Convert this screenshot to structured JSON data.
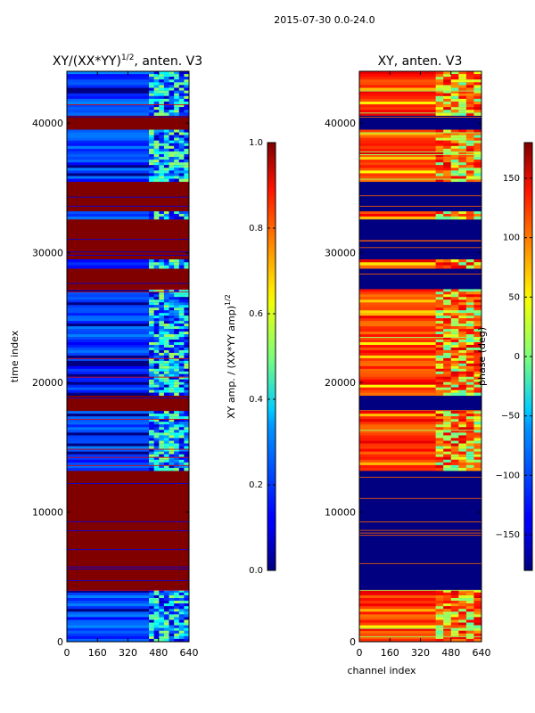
{
  "suptitle": "2015-07-30 0.0-24.0",
  "chart_data": [
    {
      "type": "heatmap",
      "title": "XY/(XX*YY)",
      "title_superscript": "1/2",
      "title_suffix": ", anten. V3",
      "xlabel": "",
      "ylabel": "time index",
      "xlim": [
        0,
        640
      ],
      "ylim": [
        0,
        44000
      ],
      "xticks": [
        "0",
        "160",
        "320",
        "480",
        "640"
      ],
      "yticks": [
        "0",
        "10000",
        "20000",
        "30000",
        "40000"
      ],
      "colormap": "jet",
      "colorbar": {
        "label": "XY amp. / (XX*YY amp)",
        "label_superscript": "1/2",
        "range": [
          0.0,
          1.0
        ],
        "ticks": [
          "0.0",
          "0.2",
          "0.4",
          "0.6",
          "0.8",
          "1.0"
        ]
      },
      "bands": [
        {
          "y0": 0,
          "y1": 4000,
          "value": 0.12,
          "state": "mixed"
        },
        {
          "y0": 4000,
          "y1": 13200,
          "value": 1.0,
          "state": "saturated"
        },
        {
          "y0": 13200,
          "y1": 17800,
          "value": 0.12,
          "state": "mixed"
        },
        {
          "y0": 17800,
          "y1": 19000,
          "value": 1.0,
          "state": "saturated"
        },
        {
          "y0": 19000,
          "y1": 27200,
          "value": 0.12,
          "state": "mixed"
        },
        {
          "y0": 27200,
          "y1": 28800,
          "value": 1.0,
          "state": "saturated"
        },
        {
          "y0": 28800,
          "y1": 29500,
          "value": 0.12,
          "state": "mixed"
        },
        {
          "y0": 29500,
          "y1": 32600,
          "value": 1.0,
          "state": "saturated"
        },
        {
          "y0": 32600,
          "y1": 33200,
          "value": 0.12,
          "state": "mixed"
        },
        {
          "y0": 33200,
          "y1": 35500,
          "value": 1.0,
          "state": "saturated"
        },
        {
          "y0": 35500,
          "y1": 39500,
          "value": 0.15,
          "state": "mixed"
        },
        {
          "y0": 39500,
          "y1": 40600,
          "value": 1.0,
          "state": "saturated"
        },
        {
          "y0": 40600,
          "y1": 44000,
          "value": 0.12,
          "state": "mixed"
        }
      ]
    },
    {
      "type": "heatmap",
      "title": "XY, anten. V3",
      "xlabel": "channel index",
      "ylabel": "",
      "xlim": [
        0,
        640
      ],
      "ylim": [
        0,
        44000
      ],
      "xticks": [
        "0",
        "160",
        "320",
        "480",
        "640"
      ],
      "yticks": [
        "0",
        "10000",
        "20000",
        "30000",
        "40000"
      ],
      "colormap": "jet",
      "colorbar": {
        "label": "phase (deg)",
        "range": [
          -180,
          180
        ],
        "ticks": [
          "−150",
          "−100",
          "−50",
          "0",
          "50",
          "100",
          "150"
        ],
        "tick_values": [
          -150,
          -100,
          -50,
          0,
          50,
          100,
          150
        ]
      },
      "bands": [
        {
          "y0": 0,
          "y1": 4000,
          "value": 120,
          "state": "phase"
        },
        {
          "y0": 4000,
          "y1": 13200,
          "value": -180,
          "state": "flagged"
        },
        {
          "y0": 13200,
          "y1": 17800,
          "value": 120,
          "state": "phase"
        },
        {
          "y0": 17800,
          "y1": 19000,
          "value": -180,
          "state": "flagged"
        },
        {
          "y0": 19000,
          "y1": 27200,
          "value": 120,
          "state": "phase"
        },
        {
          "y0": 27200,
          "y1": 28800,
          "value": -180,
          "state": "flagged"
        },
        {
          "y0": 28800,
          "y1": 29500,
          "value": 120,
          "state": "phase"
        },
        {
          "y0": 29500,
          "y1": 32600,
          "value": -180,
          "state": "flagged"
        },
        {
          "y0": 32600,
          "y1": 33200,
          "value": 120,
          "state": "phase"
        },
        {
          "y0": 33200,
          "y1": 35500,
          "value": -180,
          "state": "flagged"
        },
        {
          "y0": 35500,
          "y1": 39500,
          "value": 120,
          "state": "phase"
        },
        {
          "y0": 39500,
          "y1": 40600,
          "value": -180,
          "state": "flagged"
        },
        {
          "y0": 40600,
          "y1": 44000,
          "value": 120,
          "state": "phase"
        }
      ]
    }
  ]
}
